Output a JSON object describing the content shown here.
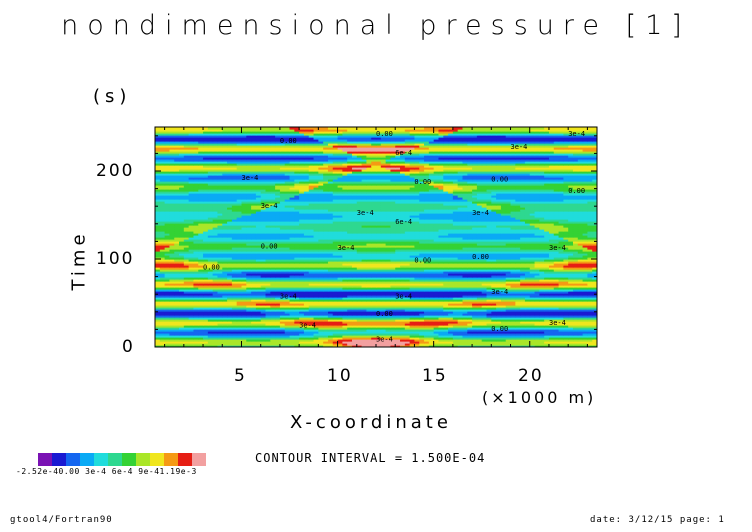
{
  "chart_data": {
    "type": "heatmap",
    "title": "nondimensional pressure [1]",
    "xlabel": "X-coordinate",
    "x_unit": "(×1000 m)",
    "ylabel": "Time",
    "y_unit": "(s)",
    "xlim": [
      0.5,
      23.5
    ],
    "ylim": [
      0,
      250
    ],
    "x_ticks": [
      "5",
      "10",
      "15",
      "20"
    ],
    "y_ticks": [
      "0",
      "100",
      "200"
    ],
    "contour_interval": "CONTOUR INTERVAL = 1.500E-04",
    "colorbar_labels": "-2.52e-40.00  3e-4  6e-4  9e-41.19e-3",
    "colorbar_colors": [
      "#7a12b4",
      "#1a1ad2",
      "#1466f0",
      "#0aaaf5",
      "#20dcdc",
      "#2ed890",
      "#34d234",
      "#aae628",
      "#f0e61e",
      "#f59a14",
      "#e61e14",
      "#f2a0a0"
    ],
    "contour_labels": [
      "0.00",
      "3e-4",
      "6e-4"
    ]
  },
  "footer": {
    "left": "gtool4/Fortran90",
    "right": "date: 3/12/15 page: 1"
  }
}
